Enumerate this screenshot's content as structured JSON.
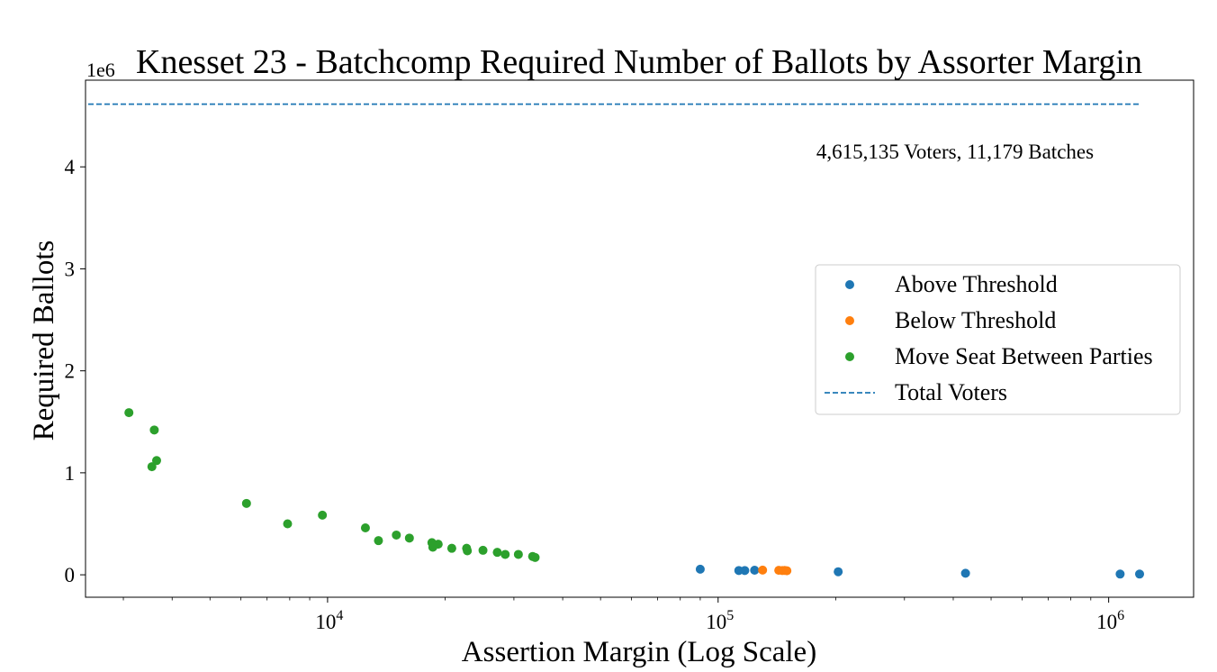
{
  "chart_data": {
    "type": "scatter",
    "title": "Knesset 23 - Batchcomp Required Number of Ballots by Assorter Margin",
    "xlabel": "Assertion Margin (Log Scale)",
    "ylabel": "Required Ballots",
    "x_scale": "log",
    "y_offset_label": "1e6",
    "xlim": [
      2400,
      1650000
    ],
    "ylim": [
      -0.22,
      4.85
    ],
    "x_ticks": [
      {
        "value": 10000,
        "base": "10",
        "exp": "4"
      },
      {
        "value": 100000,
        "base": "10",
        "exp": "5"
      },
      {
        "value": 1000000,
        "base": "10",
        "exp": "6"
      }
    ],
    "y_ticks": [
      0,
      1,
      2,
      3,
      4
    ],
    "grid": false,
    "legend_position": "center-right",
    "annotation": "4,615,135 Voters, 11,179 Batches",
    "hline": {
      "name": "Total Voters",
      "value": 4.615135,
      "color": "#1f77b4",
      "style": "dashed"
    },
    "series": [
      {
        "name": "Above Threshold",
        "color": "#1f77b4",
        "points": [
          [
            90000,
            0.055
          ],
          [
            113000,
            0.042
          ],
          [
            117000,
            0.042
          ],
          [
            124000,
            0.045
          ],
          [
            203000,
            0.03
          ],
          [
            430000,
            0.015
          ],
          [
            1070000,
            0.007
          ],
          [
            1200000,
            0.007
          ]
        ]
      },
      {
        "name": "Below Threshold",
        "color": "#ff7f0e",
        "points": [
          [
            130000,
            0.046
          ],
          [
            143000,
            0.044
          ],
          [
            146000,
            0.042
          ],
          [
            148000,
            0.043
          ],
          [
            150000,
            0.04
          ]
        ]
      },
      {
        "name": "Move Seat Between Parties",
        "color": "#2ca02c",
        "points": [
          [
            3100,
            1.59
          ],
          [
            3550,
            1.06
          ],
          [
            3600,
            1.42
          ],
          [
            3650,
            1.12
          ],
          [
            6200,
            0.7
          ],
          [
            7900,
            0.5
          ],
          [
            9700,
            0.585
          ],
          [
            12500,
            0.46
          ],
          [
            13500,
            0.335
          ],
          [
            15000,
            0.39
          ],
          [
            16200,
            0.36
          ],
          [
            18500,
            0.315
          ],
          [
            18600,
            0.27
          ],
          [
            19200,
            0.3
          ],
          [
            20800,
            0.26
          ],
          [
            22700,
            0.26
          ],
          [
            22800,
            0.235
          ],
          [
            25000,
            0.24
          ],
          [
            27200,
            0.22
          ],
          [
            28500,
            0.2
          ],
          [
            30800,
            0.2
          ],
          [
            33500,
            0.18
          ],
          [
            34000,
            0.17
          ]
        ]
      }
    ]
  }
}
